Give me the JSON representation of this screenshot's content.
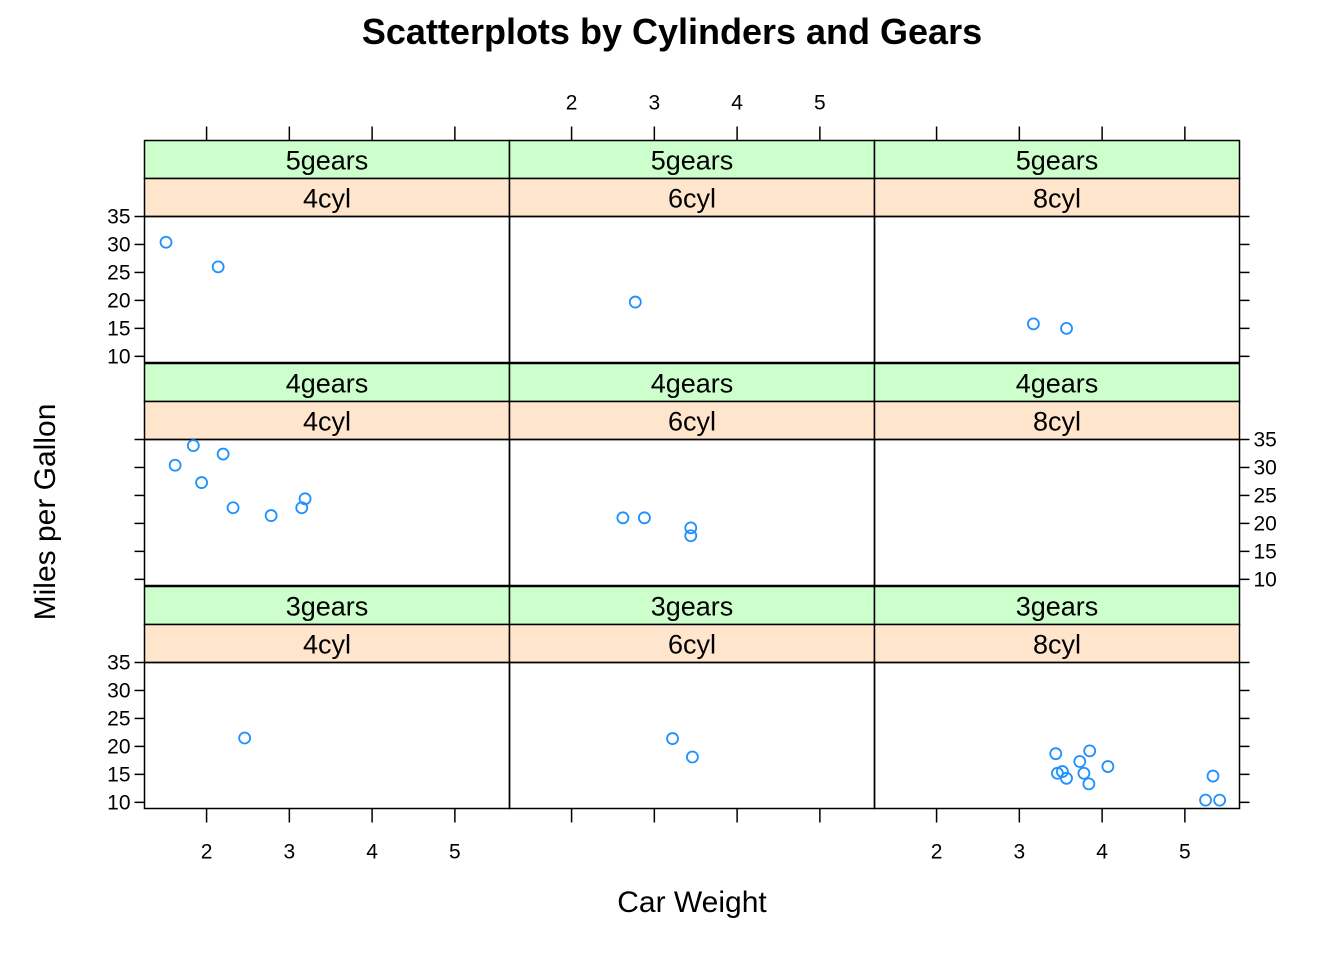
{
  "chart_data": {
    "type": "scatter",
    "title": "Scatterplots by Cylinders and Gears",
    "xlabel": "Car Weight",
    "ylabel": "Miles per Gallon",
    "xlim": [
      1.25,
      5.66
    ],
    "ylim": [
      8.9,
      35.0
    ],
    "x_ticks": [
      2,
      3,
      4,
      5
    ],
    "y_ticks": [
      10,
      15,
      20,
      25,
      30,
      35
    ],
    "colors": {
      "point": "#1E90FF",
      "strip_gear": "#CCFFCC",
      "strip_cyl": "#FFE5CC",
      "frame": "#000000"
    },
    "columns": [
      "4cyl",
      "6cyl",
      "8cyl"
    ],
    "rows": [
      "5gears",
      "4gears",
      "3gears"
    ],
    "panels": [
      {
        "gear": "5gears",
        "cyl": "4cyl",
        "points": [
          [
            1.51,
            30.4
          ],
          [
            2.14,
            26.0
          ]
        ]
      },
      {
        "gear": "5gears",
        "cyl": "6cyl",
        "points": [
          [
            2.77,
            19.7
          ]
        ]
      },
      {
        "gear": "5gears",
        "cyl": "8cyl",
        "points": [
          [
            3.17,
            15.8
          ],
          [
            3.57,
            15.0
          ]
        ]
      },
      {
        "gear": "4gears",
        "cyl": "4cyl",
        "points": [
          [
            1.84,
            33.9
          ],
          [
            1.62,
            30.4
          ],
          [
            2.2,
            32.4
          ],
          [
            1.94,
            27.3
          ],
          [
            2.32,
            22.8
          ],
          [
            2.78,
            21.4
          ],
          [
            3.15,
            22.8
          ],
          [
            3.19,
            24.4
          ]
        ]
      },
      {
        "gear": "4gears",
        "cyl": "6cyl",
        "points": [
          [
            2.62,
            21.0
          ],
          [
            2.88,
            21.0
          ],
          [
            3.44,
            19.2
          ],
          [
            3.44,
            17.8
          ]
        ]
      },
      {
        "gear": "4gears",
        "cyl": "8cyl",
        "points": []
      },
      {
        "gear": "3gears",
        "cyl": "4cyl",
        "points": [
          [
            2.46,
            21.5
          ]
        ]
      },
      {
        "gear": "3gears",
        "cyl": "6cyl",
        "points": [
          [
            3.22,
            21.4
          ],
          [
            3.46,
            18.1
          ]
        ]
      },
      {
        "gear": "3gears",
        "cyl": "8cyl",
        "points": [
          [
            3.44,
            18.7
          ],
          [
            3.46,
            15.2
          ],
          [
            3.52,
            15.5
          ],
          [
            3.57,
            14.3
          ],
          [
            3.73,
            17.3
          ],
          [
            3.78,
            15.2
          ],
          [
            3.84,
            13.3
          ],
          [
            3.85,
            19.2
          ],
          [
            4.07,
            16.4
          ],
          [
            5.25,
            10.4
          ],
          [
            5.34,
            14.7
          ],
          [
            5.42,
            10.4
          ]
        ]
      }
    ]
  }
}
